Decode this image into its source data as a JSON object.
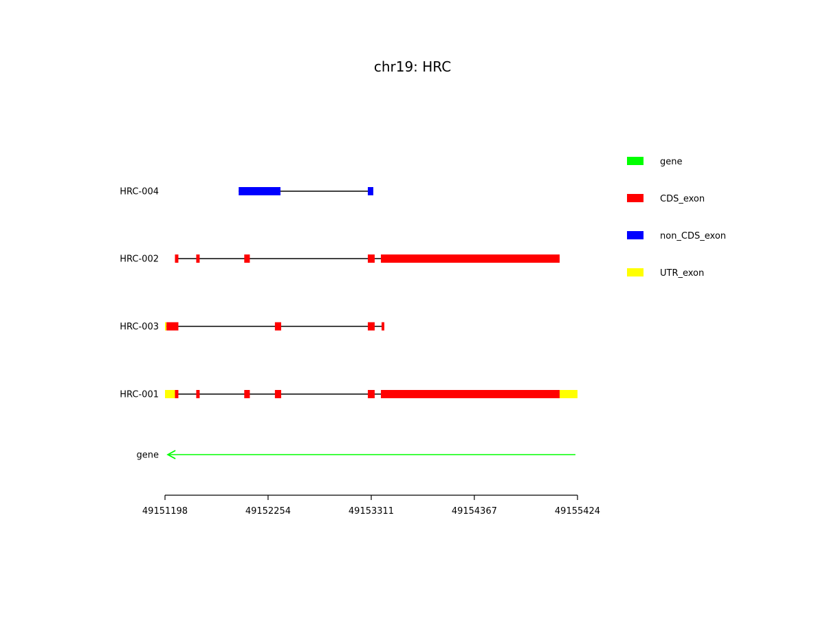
{
  "chart_data": {
    "type": "gene-structure",
    "title": "chr19: HRC",
    "x_range": [
      49151198,
      49155424
    ],
    "x_ticks": [
      49151198,
      49152254,
      49153311,
      49154367,
      49155424
    ],
    "colors": {
      "gene": "#00ff00",
      "CDS_exon": "#ff0000",
      "non_CDS_exon": "#0000ff",
      "UTR_exon": "#ffff00",
      "intron": "#000000"
    },
    "legend_position": "right",
    "legend": [
      {
        "label": "gene",
        "type": "gene"
      },
      {
        "label": "CDS_exon",
        "type": "CDS_exon"
      },
      {
        "label": "non_CDS_exon",
        "type": "non_CDS_exon"
      },
      {
        "label": "UTR_exon",
        "type": "UTR_exon"
      }
    ],
    "gene": {
      "label": "gene",
      "start": 49151227,
      "end": 49155403,
      "strand": "-"
    },
    "transcripts": [
      {
        "name": "HRC-004",
        "start": 49151953,
        "end": 49153332,
        "exons": [
          {
            "type": "non_CDS_exon",
            "start": 49151953,
            "end": 49152381
          },
          {
            "type": "non_CDS_exon",
            "start": 49153276,
            "end": 49153332
          }
        ]
      },
      {
        "name": "HRC-002",
        "start": 49151300,
        "end": 49155241,
        "exons": [
          {
            "type": "CDS_exon",
            "start": 49151300,
            "end": 49151335
          },
          {
            "type": "CDS_exon",
            "start": 49151518,
            "end": 49151553
          },
          {
            "type": "CDS_exon",
            "start": 49152010,
            "end": 49152067
          },
          {
            "type": "CDS_exon",
            "start": 49153276,
            "end": 49153346
          },
          {
            "type": "CDS_exon",
            "start": 49153410,
            "end": 49155241
          }
        ]
      },
      {
        "name": "HRC-003",
        "start": 49151198,
        "end": 49153445,
        "exons": [
          {
            "type": "UTR_exon",
            "start": 49151198,
            "end": 49151213
          },
          {
            "type": "CDS_exon",
            "start": 49151213,
            "end": 49151335
          },
          {
            "type": "CDS_exon",
            "start": 49152324,
            "end": 49152388
          },
          {
            "type": "CDS_exon",
            "start": 49153276,
            "end": 49153346
          },
          {
            "type": "CDS_exon",
            "start": 49153417,
            "end": 49153445
          }
        ]
      },
      {
        "name": "HRC-001",
        "start": 49151198,
        "end": 49155424,
        "exons": [
          {
            "type": "UTR_exon",
            "start": 49151198,
            "end": 49151300
          },
          {
            "type": "CDS_exon",
            "start": 49151300,
            "end": 49151335
          },
          {
            "type": "CDS_exon",
            "start": 49151518,
            "end": 49151553
          },
          {
            "type": "CDS_exon",
            "start": 49152010,
            "end": 49152067
          },
          {
            "type": "CDS_exon",
            "start": 49152324,
            "end": 49152388
          },
          {
            "type": "CDS_exon",
            "start": 49153276,
            "end": 49153346
          },
          {
            "type": "CDS_exon",
            "start": 49153410,
            "end": 49155241
          },
          {
            "type": "UTR_exon",
            "start": 49155241,
            "end": 49155424
          }
        ]
      }
    ]
  }
}
